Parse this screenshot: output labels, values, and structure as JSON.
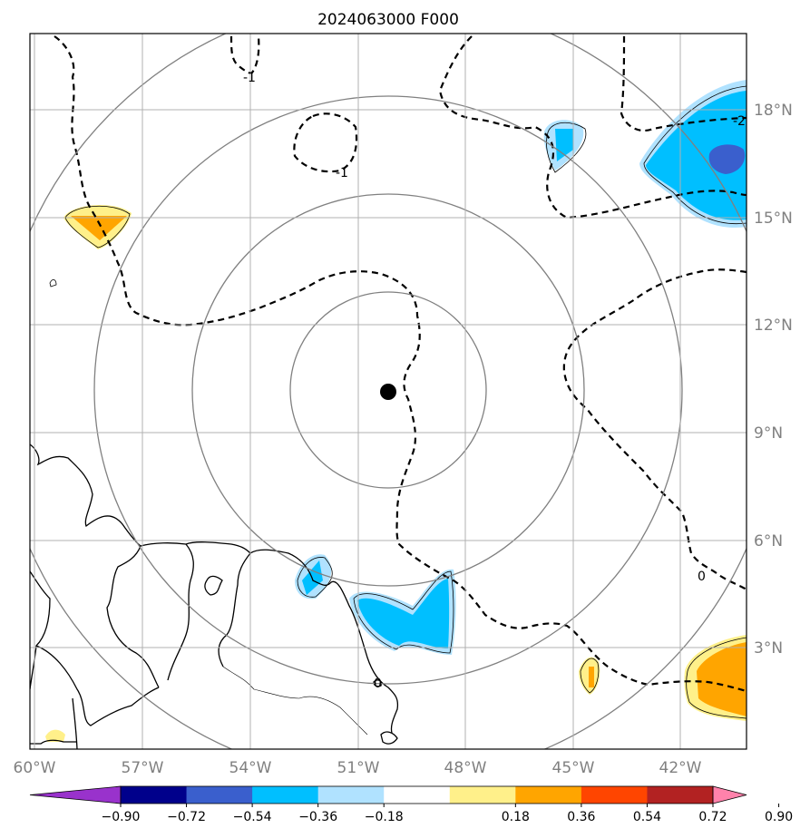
{
  "title": "2024063000 F000",
  "lon_labels": [
    "60°W",
    "57°W",
    "54°W",
    "51°W",
    "48°W",
    "45°W",
    "42°W"
  ],
  "lat_labels": [
    "18°N",
    "15°N",
    "12°N",
    "9°N",
    "6°N",
    "3°N"
  ],
  "contour_labels": [
    "-1",
    "-1",
    "-2",
    "0",
    "0"
  ],
  "colorbar": {
    "ticks": [
      "−0.90",
      "−0.72",
      "−0.54",
      "−0.36",
      "−0.18",
      "0.18",
      "0.36",
      "0.54",
      "0.72",
      "0.90"
    ],
    "colors": [
      "#9932cc",
      "#00008b",
      "#3a5fcd",
      "#00bfff",
      "#b0e2ff",
      "#ffffff",
      "#fff08a",
      "#ffa500",
      "#ff4500",
      "#b22222",
      "#ff82ab"
    ]
  },
  "center": {
    "lon": -50.2,
    "lat": 10.1
  }
}
